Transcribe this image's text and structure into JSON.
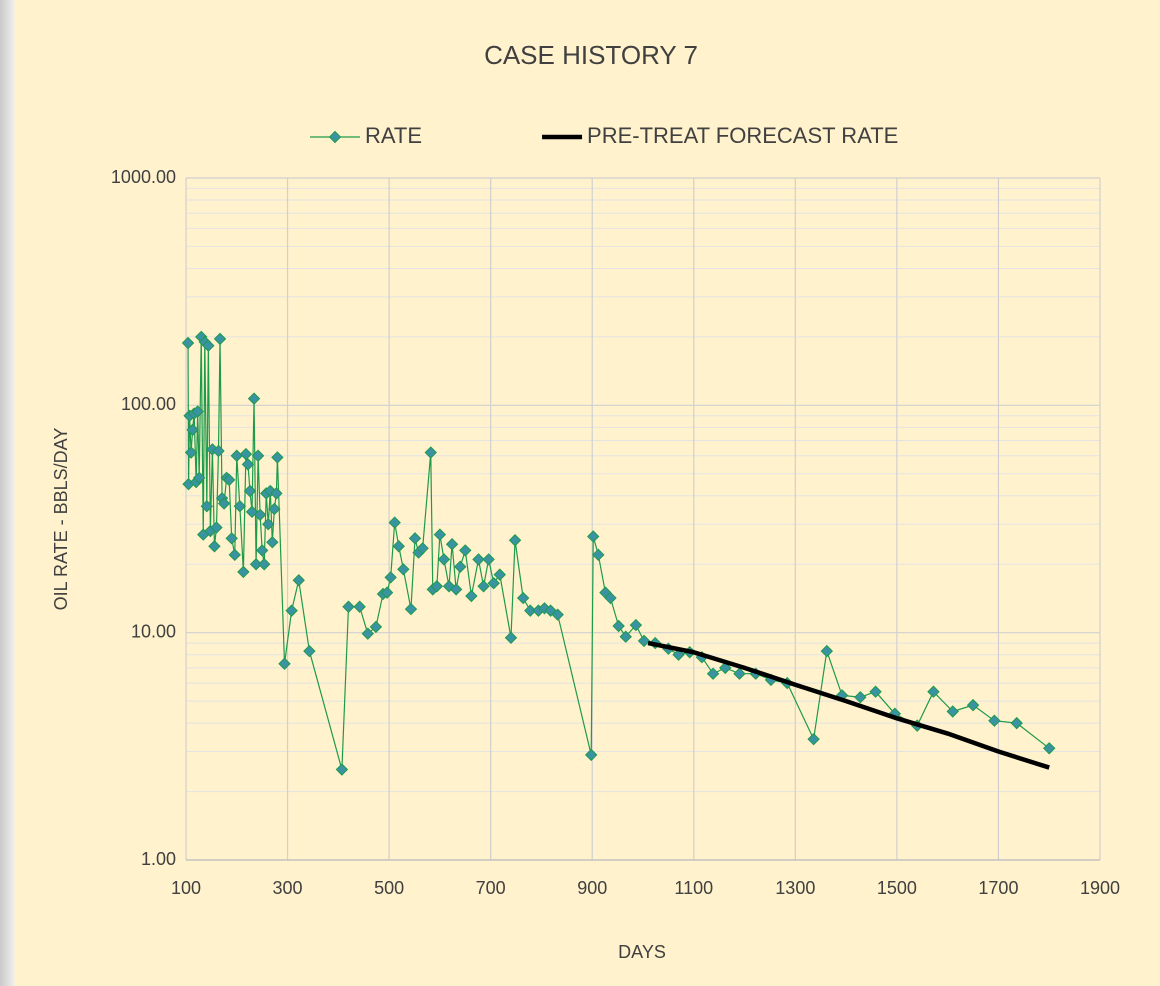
{
  "chart_data": {
    "type": "line",
    "title": "CASE HISTORY 7",
    "x_label": "DAYS",
    "y_label": "OIL RATE - BBLS/DAY",
    "yscale": "log",
    "grid": true,
    "minor_grid": true,
    "legend": "top",
    "xlim": [
      100,
      1900
    ],
    "xticks": [
      100,
      300,
      500,
      700,
      900,
      1100,
      1300,
      1500,
      1700,
      1900
    ],
    "ylim": [
      1,
      1000
    ],
    "yticks": [
      {
        "value": 1,
        "label": "1.00"
      },
      {
        "value": 10,
        "label": "10.00"
      },
      {
        "value": 100,
        "label": "100.00"
      },
      {
        "value": 1000,
        "label": "1000.00"
      }
    ],
    "series": [
      {
        "name": "RATE",
        "color": "#1e9a4a",
        "marker_color": "#3a93a3",
        "marker": "diamond",
        "x": [
          104,
          105,
          107,
          110,
          113,
          116,
          120,
          123,
          126,
          130,
          134,
          137,
          141,
          144,
          148,
          152,
          156,
          160,
          164,
          167,
          171,
          175,
          180,
          185,
          190,
          196,
          200,
          206,
          213,
          218,
          222,
          226,
          230,
          234,
          238,
          242,
          246,
          250,
          254,
          258,
          262,
          266,
          270,
          274,
          278,
          280,
          294,
          308,
          322,
          343,
          407,
          420,
          442,
          458,
          474,
          488,
          496,
          503,
          511,
          519,
          528,
          543,
          551,
          558,
          566,
          582,
          586,
          594,
          600,
          608,
          618,
          624,
          632,
          640,
          650,
          662,
          676,
          686,
          696,
          706,
          718,
          740,
          748,
          764,
          778,
          794,
          806,
          818,
          832,
          898,
          902,
          912,
          926,
          936,
          952,
          966,
          986,
          1002,
          1024,
          1050,
          1070,
          1092,
          1116,
          1138,
          1162,
          1190,
          1222,
          1252,
          1284,
          1336,
          1362,
          1392,
          1428,
          1458,
          1496,
          1540,
          1572,
          1610,
          1650,
          1692,
          1736,
          1800
        ],
        "values": [
          188,
          45,
          90,
          62,
          78,
          92,
          46,
          94,
          48,
          200,
          27,
          190,
          36,
          183,
          28,
          64,
          24,
          29,
          63,
          196,
          39,
          37,
          48,
          47,
          26,
          22,
          60,
          36,
          18.5,
          61,
          55,
          42,
          34,
          107,
          20,
          60,
          33,
          23,
          20,
          41,
          30,
          42,
          25,
          35,
          41,
          59,
          7.3,
          12.5,
          17,
          8.3,
          2.5,
          13,
          13,
          9.9,
          10.6,
          14.8,
          15,
          17.5,
          30.5,
          24,
          19,
          12.7,
          26,
          22.5,
          23.5,
          62,
          15.5,
          16,
          27,
          21,
          16,
          24.5,
          15.5,
          19.5,
          23,
          14.5,
          21,
          16,
          21,
          16.5,
          18,
          9.5,
          25.5,
          14.2,
          12.5,
          12.5,
          12.8,
          12.5,
          12,
          2.9,
          26.5,
          22,
          15,
          14.2,
          10.7,
          9.6,
          10.8,
          9.2,
          9,
          8.5,
          8,
          8.2,
          7.8,
          6.6,
          7,
          6.6,
          6.6,
          6.2,
          6,
          3.4,
          8.3,
          5.3,
          5.2,
          5.5,
          4.4,
          3.9,
          5.5,
          4.5,
          4.8,
          4.1,
          4,
          3.1
        ]
      },
      {
        "name": "PRE-TREAT FORECAST RATE",
        "color": "#000000",
        "x": [
          1010,
          1100,
          1200,
          1300,
          1400,
          1500,
          1600,
          1700,
          1800
        ],
        "values": [
          9,
          8.2,
          7,
          5.9,
          5,
          4.2,
          3.6,
          3,
          2.55
        ]
      }
    ]
  }
}
